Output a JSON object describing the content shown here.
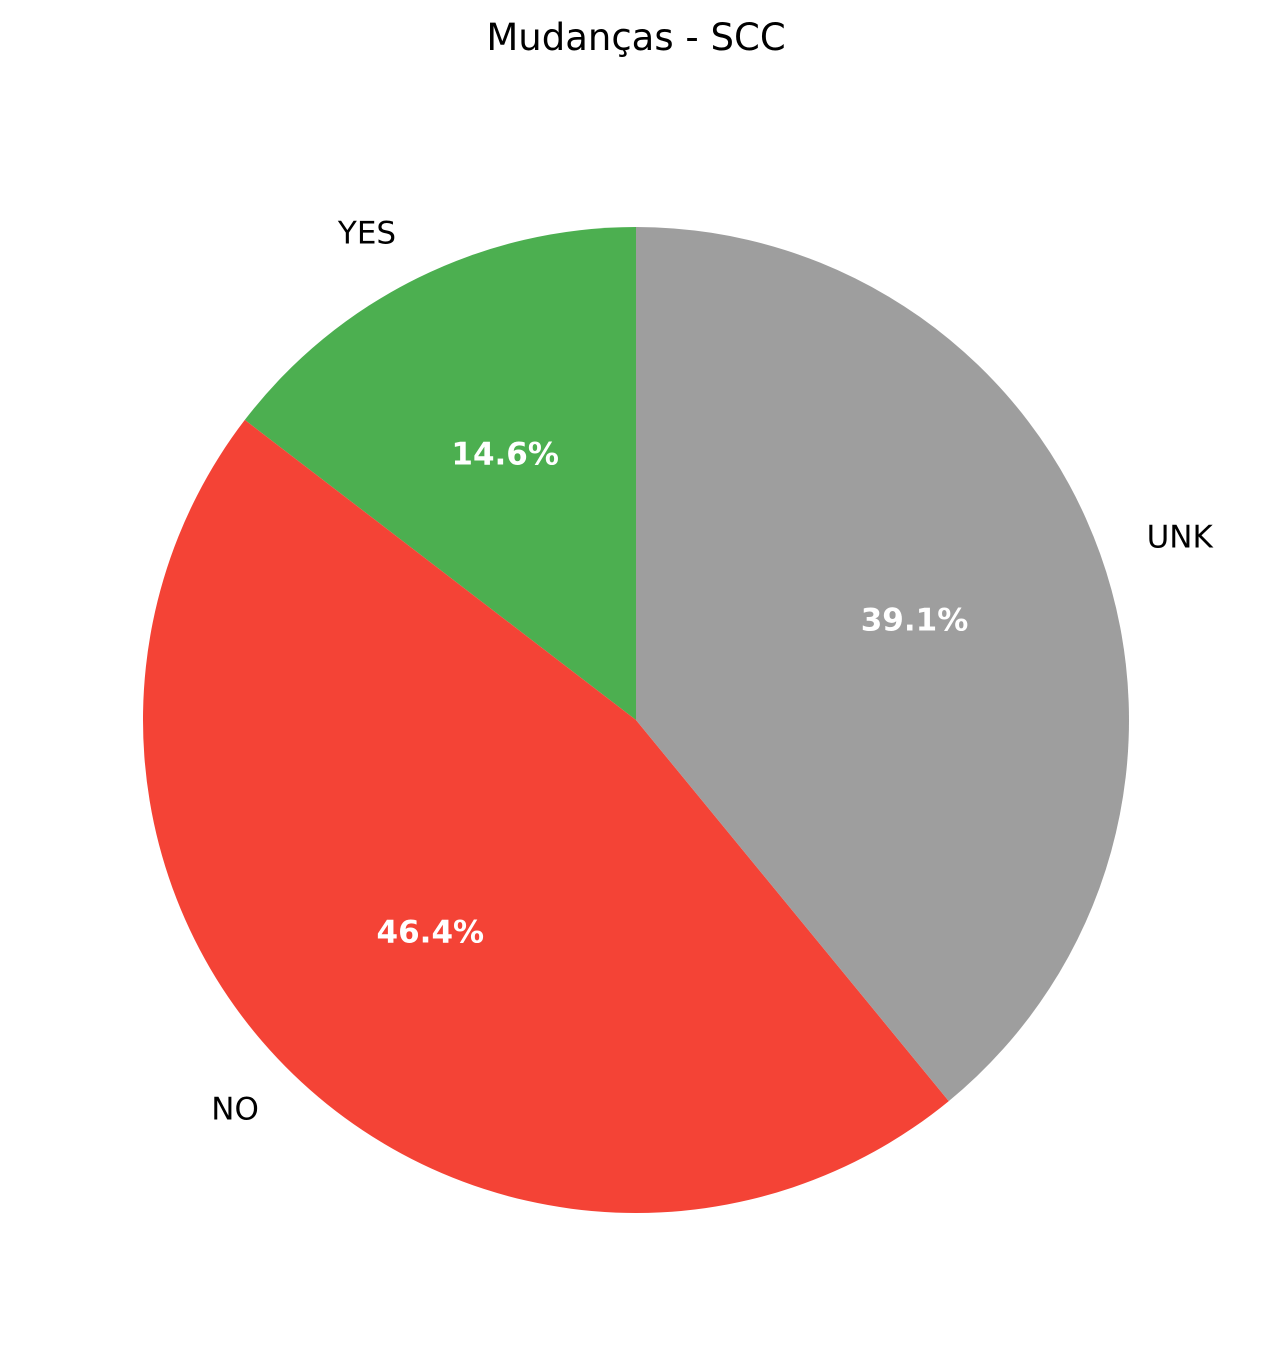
{
  "chart_data": {
    "type": "pie",
    "title": "Mudanças - SCC",
    "categories": [
      "YES",
      "NO",
      "UNK"
    ],
    "values": [
      14.6,
      46.4,
      39.1
    ],
    "percent_labels": [
      "14.6%",
      "46.4%",
      "39.1%"
    ],
    "colors": [
      "#4caf50",
      "#f44336",
      "#9e9e9e"
    ],
    "start_angle_deg": 90,
    "direction": "counterclockwise",
    "legend": "none"
  }
}
